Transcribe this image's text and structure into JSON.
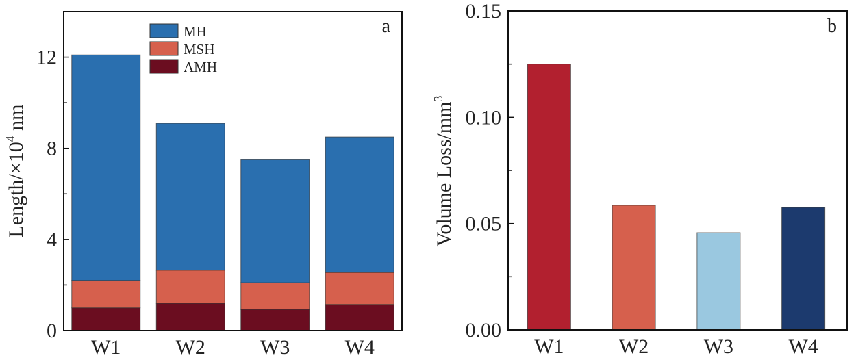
{
  "chart_data": [
    {
      "panel": "a",
      "type": "bar",
      "stacked": true,
      "categories": [
        "W1",
        "W2",
        "W3",
        "W4"
      ],
      "series": [
        {
          "name": "AMH",
          "color": "#6b0d20",
          "values": [
            1.0,
            1.2,
            0.93,
            1.15
          ]
        },
        {
          "name": "MSH",
          "color": "#d6604d",
          "values": [
            1.2,
            1.45,
            1.17,
            1.4
          ]
        },
        {
          "name": "MH",
          "color": "#2a6faf",
          "values": [
            9.9,
            6.45,
            5.4,
            5.95
          ]
        }
      ],
      "totals": [
        12.1,
        9.1,
        7.5,
        8.5
      ],
      "title": "",
      "xlabel": "",
      "ylabel": "Length/×10",
      "ylabel_sup": "4",
      "ylabel_suffix": " nm",
      "ylim": [
        0,
        14
      ],
      "yticks": [
        0,
        4,
        8,
        12
      ],
      "yticks_minor": [
        2,
        6,
        10
      ],
      "legend_order": [
        "MH",
        "MSH",
        "AMH"
      ],
      "legend": "top-center",
      "grid": false
    },
    {
      "panel": "b",
      "type": "bar",
      "categories": [
        "W1",
        "W2",
        "W3",
        "W4"
      ],
      "values": [
        0.125,
        0.0586,
        0.0457,
        0.0576
      ],
      "colors": [
        "#b2202f",
        "#d6604d",
        "#9ac8e0",
        "#1c3a6e"
      ],
      "title": "",
      "xlabel": "",
      "ylabel": "Volume Loss/mm",
      "ylabel_sup": "3",
      "ylim": [
        0,
        0.15
      ],
      "yticks": [
        0.0,
        0.05,
        0.1,
        0.15
      ],
      "ytick_labels": [
        "0.00",
        "0.05",
        "0.10",
        "0.15"
      ],
      "yticks_minor": [
        0.025,
        0.075,
        0.125
      ],
      "grid": false
    }
  ],
  "panel_labels": {
    "a": "a",
    "b": "b"
  }
}
